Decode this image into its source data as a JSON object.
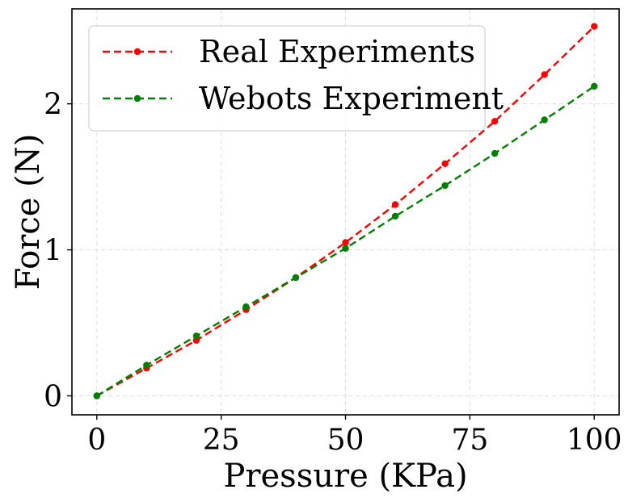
{
  "chart_data": {
    "type": "line",
    "title": "",
    "xlabel": "Pressure (KPa)",
    "ylabel": "Force (N)",
    "xlim": [
      -5,
      105
    ],
    "ylim": [
      -0.13,
      2.65
    ],
    "xticks": [
      0,
      25,
      50,
      75,
      100
    ],
    "xtick_labels": [
      "0",
      "25",
      "50",
      "75",
      "100"
    ],
    "yticks": [
      0,
      1,
      2
    ],
    "ytick_labels": [
      "0",
      "1",
      "2"
    ],
    "grid": true,
    "legend_position": "top-left",
    "series": [
      {
        "name": "Real Experiments",
        "color": "#ff0000",
        "line_style": "dashed",
        "marker": "circle",
        "x": [
          0,
          10,
          20,
          30,
          40,
          50,
          60,
          70,
          80,
          90,
          100
        ],
        "y": [
          0.0,
          0.19,
          0.38,
          0.59,
          0.81,
          1.05,
          1.31,
          1.59,
          1.88,
          2.2,
          2.53
        ]
      },
      {
        "name": "Webots Experiment",
        "color": "#008000",
        "line_style": "dashed",
        "marker": "circle",
        "x": [
          0,
          10,
          20,
          30,
          40,
          50,
          60,
          70,
          80,
          90,
          100
        ],
        "y": [
          0.0,
          0.21,
          0.41,
          0.61,
          0.81,
          1.01,
          1.23,
          1.44,
          1.66,
          1.89,
          2.12
        ]
      }
    ]
  }
}
